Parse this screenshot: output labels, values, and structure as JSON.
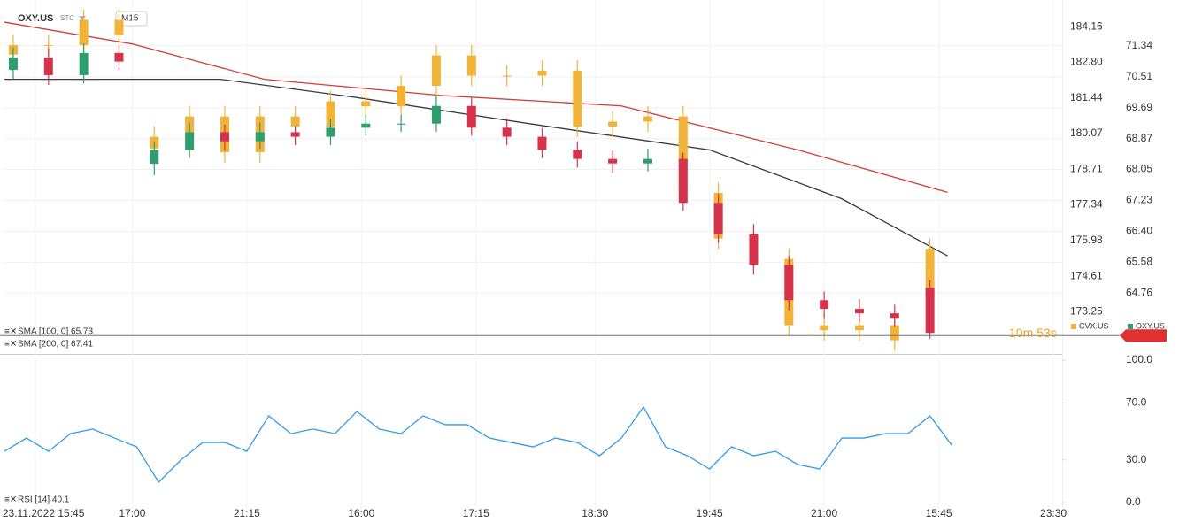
{
  "header": {
    "symbol": "OXY.US",
    "exchange": "STC",
    "interval": "M15"
  },
  "chart_data": [
    {
      "type": "candlestick",
      "x": [
        2,
        10,
        18,
        26,
        34,
        42,
        50,
        58,
        66,
        74,
        82,
        90,
        98,
        106,
        114,
        122,
        130,
        138,
        146,
        154,
        162,
        170,
        178,
        186,
        194,
        202,
        210
      ],
      "xlim": [
        0,
        240
      ],
      "xticks": [
        {
          "value": 7,
          "label": "23.11.2022 15:45"
        },
        {
          "value": 29,
          "label": "17:00"
        },
        {
          "value": 55,
          "label": "21:15"
        },
        {
          "value": 81,
          "label": "16:00"
        },
        {
          "value": 107,
          "label": "17:15"
        },
        {
          "value": 134,
          "label": "18:30"
        },
        {
          "value": 160,
          "label": "19:45"
        },
        {
          "value": 186,
          "label": "21:00"
        },
        {
          "value": 212,
          "label": "15:45"
        },
        {
          "value": 238,
          "label": "23:30"
        }
      ],
      "ylim": [
        63.14,
        72.56
      ],
      "yticks": [
        71.34,
        70.51,
        69.69,
        68.87,
        68.05,
        67.23,
        {
          "value": 66.4,
          "label": "66.40"
        },
        65.58,
        64.76
      ],
      "y2lim": [
        171.63,
        185.19
      ],
      "y2ticks": [
        184.16,
        {
          "value": 182.8,
          "label": "182.80"
        },
        181.44,
        180.07,
        178.71,
        177.34,
        175.98,
        174.61,
        173.25
      ],
      "grid": true,
      "price_line": 63.63,
      "countdown": "10m 53s",
      "series": [
        {
          "name": "CVX.US",
          "color": "#f0b43a",
          "axis": "y2",
          "open": [
            183.1,
            183.46,
            183.46,
            184.43,
            179.5,
            179.95,
            180.73,
            179.36,
            180.73,
            180.34,
            181.31,
            181.12,
            181.9,
            183.07,
            182.29,
            182.29,
            182.48,
            180.34,
            180.53,
            180.73,
            177.8,
            176.05,
            175.27,
            172.73,
            172.54,
            172.73,
            173.8
          ],
          "high": [
            183.86,
            183.86,
            184.83,
            184.83,
            180.35,
            181.13,
            181.13,
            181.13,
            181.13,
            181.71,
            181.71,
            182.3,
            183.47,
            183.47,
            182.69,
            182.88,
            182.88,
            180.93,
            181.13,
            181.13,
            178.2,
            176.45,
            175.67,
            173.13,
            172.94,
            173.13,
            176.06
          ],
          "low": [
            182.7,
            183.06,
            183.06,
            183.45,
            179.1,
            179.55,
            178.96,
            178.96,
            179.94,
            179.94,
            180.72,
            180.72,
            181.5,
            181.89,
            181.89,
            181.89,
            179.94,
            179.94,
            180.13,
            177.4,
            175.65,
            174.87,
            172.33,
            172.14,
            172.14,
            171.75,
            173.4
          ],
          "close": [
            183.46,
            183.46,
            184.43,
            183.85,
            179.95,
            180.73,
            179.36,
            180.73,
            180.34,
            181.31,
            181.12,
            181.9,
            183.07,
            182.29,
            182.29,
            182.48,
            180.34,
            180.53,
            180.73,
            177.8,
            176.05,
            175.27,
            172.73,
            172.54,
            172.73,
            172.15,
            175.66
          ]
        },
        {
          "name": "OXY.US",
          "color": "#2e9e6e",
          "down_color": "#d6324b",
          "open": [
            70.7,
            71.03,
            70.56,
            71.15,
            68.2,
            68.57,
            69.04,
            68.8,
            69.04,
            68.92,
            69.16,
            69.27,
            69.27,
            69.74,
            69.16,
            68.92,
            68.57,
            68.33,
            68.21,
            68.33,
            67.16,
            66.33,
            65.51,
            64.57,
            64.34,
            64.22,
            64.9
          ],
          "high": [
            71.3,
            71.28,
            71.4,
            71.35,
            68.8,
            69.3,
            69.25,
            69.3,
            69.2,
            69.4,
            69.5,
            69.5,
            70.0,
            69.95,
            69.4,
            69.15,
            68.8,
            68.55,
            68.6,
            68.5,
            67.4,
            66.6,
            65.75,
            64.8,
            64.6,
            64.45,
            65.1
          ],
          "low": [
            70.45,
            70.3,
            70.35,
            70.7,
            67.9,
            68.35,
            68.55,
            68.6,
            68.7,
            68.7,
            68.95,
            69.05,
            69.05,
            68.95,
            68.7,
            68.35,
            68.1,
            67.95,
            68.0,
            66.95,
            66.1,
            65.25,
            64.3,
            64.1,
            64.0,
            63.85,
            63.55
          ],
          "close": [
            71.03,
            70.56,
            71.15,
            70.92,
            68.57,
            69.04,
            68.8,
            69.04,
            68.92,
            69.16,
            69.27,
            69.27,
            69.74,
            69.16,
            68.92,
            68.57,
            68.33,
            68.21,
            68.33,
            67.16,
            66.33,
            65.51,
            64.57,
            64.34,
            64.22,
            64.1,
            63.7
          ]
        }
      ],
      "lines": [
        {
          "name": "SMA [100, 0] 65.73",
          "color": "#3a3a3a",
          "x": [
            0,
            49,
            79,
            119,
            160,
            190,
            214
          ],
          "values": [
            70.45,
            70.45,
            69.98,
            69.27,
            68.57,
            67.27,
            65.75
          ]
        },
        {
          "name": "SMA [200, 0] 67.41",
          "color": "#d43b3b",
          "x": [
            0,
            29,
            59,
            99,
            140,
            180,
            214
          ],
          "values": [
            71.97,
            71.39,
            70.45,
            70.02,
            69.74,
            68.57,
            67.44
          ]
        }
      ]
    },
    {
      "type": "line",
      "xlim": [
        0,
        240
      ],
      "ylim": [
        0,
        100
      ],
      "yticks": [
        {
          "value": 100,
          "label": "100.0"
        },
        {
          "value": 70,
          "label": "70.0"
        },
        {
          "value": 30,
          "label": "30.0"
        },
        {
          "value": 0,
          "label": "0.0"
        }
      ],
      "series": [
        {
          "name": "RSI [14] 40.1",
          "color": "#2f9be8",
          "x": [
            0,
            5,
            10,
            15,
            20,
            25,
            30,
            35,
            40,
            45,
            50,
            55,
            60,
            65,
            70,
            75,
            80,
            85,
            90,
            95,
            100,
            105,
            110,
            115,
            120,
            125,
            130,
            135,
            140,
            145,
            150,
            155,
            160,
            165,
            170,
            175,
            180,
            185,
            190,
            195,
            200,
            205,
            210,
            215
          ],
          "values": [
            36.0,
            45.3,
            36.0,
            48.4,
            51.6,
            45.3,
            39.1,
            14.3,
            29.8,
            42.2,
            42.2,
            36.0,
            60.9,
            48.4,
            51.6,
            48.4,
            64.0,
            51.6,
            48.4,
            60.9,
            54.7,
            54.7,
            45.3,
            42.2,
            39.1,
            45.3,
            42.2,
            32.9,
            45.3,
            67.1,
            39.1,
            32.9,
            23.6,
            39.1,
            32.9,
            36.0,
            26.7,
            23.6,
            45.3,
            45.3,
            48.4,
            48.4,
            60.9,
            40.1
          ]
        }
      ]
    }
  ]
}
